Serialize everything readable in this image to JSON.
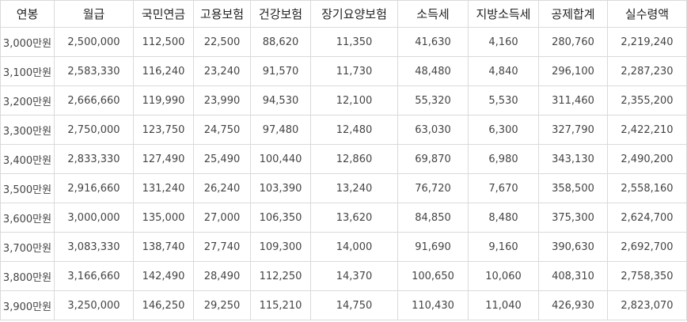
{
  "table": {
    "headers": [
      "연봉",
      "월급",
      "국민연금",
      "고용보험",
      "건강보험",
      "장기요양보험",
      "소득세",
      "지방소득세",
      "공제합계",
      "실수령액"
    ],
    "rows": [
      [
        "3,000만원",
        "2,500,000",
        "112,500",
        "22,500",
        "88,620",
        "11,350",
        "41,630",
        "4,160",
        "280,760",
        "2,219,240"
      ],
      [
        "3,100만원",
        "2,583,330",
        "116,240",
        "23,240",
        "91,570",
        "11,730",
        "48,480",
        "4,840",
        "296,100",
        "2,287,230"
      ],
      [
        "3,200만원",
        "2,666,660",
        "119,990",
        "23,990",
        "94,530",
        "12,100",
        "55,320",
        "5,530",
        "311,460",
        "2,355,200"
      ],
      [
        "3,300만원",
        "2,750,000",
        "123,750",
        "24,750",
        "97,480",
        "12,480",
        "63,030",
        "6,300",
        "327,790",
        "2,422,210"
      ],
      [
        "3,400만원",
        "2,833,330",
        "127,490",
        "25,490",
        "100,440",
        "12,860",
        "69,870",
        "6,980",
        "343,130",
        "2,490,200"
      ],
      [
        "3,500만원",
        "2,916,660",
        "131,240",
        "26,240",
        "103,390",
        "13,240",
        "76,720",
        "7,670",
        "358,500",
        "2,558,160"
      ],
      [
        "3,600만원",
        "3,000,000",
        "135,000",
        "27,000",
        "106,350",
        "13,620",
        "84,850",
        "8,480",
        "375,300",
        "2,624,700"
      ],
      [
        "3,700만원",
        "3,083,330",
        "138,740",
        "27,740",
        "109,300",
        "14,000",
        "91,690",
        "9,160",
        "390,630",
        "2,692,700"
      ],
      [
        "3,800만원",
        "3,166,660",
        "142,490",
        "28,490",
        "112,250",
        "14,370",
        "100,650",
        "10,060",
        "408,310",
        "2,758,350"
      ],
      [
        "3,900만원",
        "3,250,000",
        "146,250",
        "29,250",
        "115,210",
        "14,750",
        "110,430",
        "11,040",
        "426,930",
        "2,823,070"
      ]
    ]
  }
}
